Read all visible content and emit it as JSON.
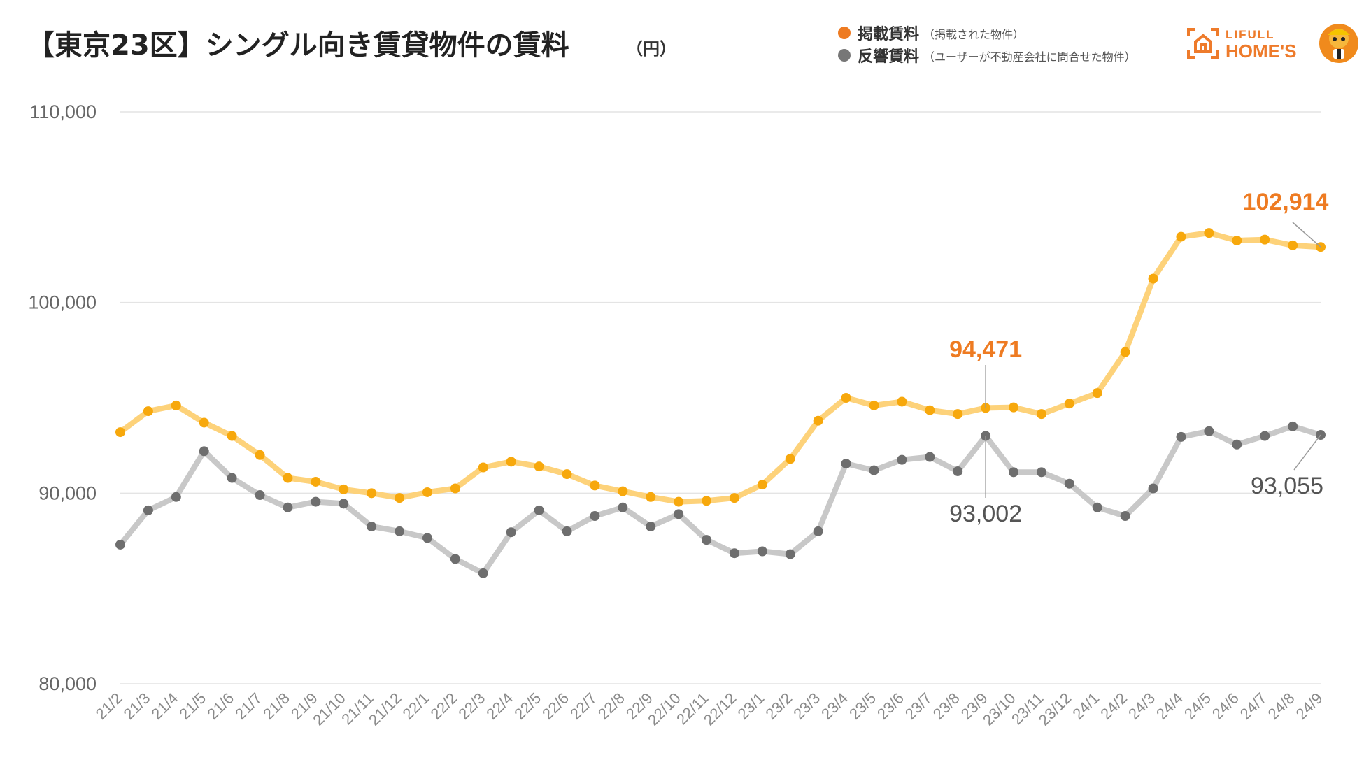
{
  "title": "【東京23区】シングル向き賃貸物件の賃料",
  "unit": "（円）",
  "legend": [
    {
      "label": "掲載賃料",
      "note": "（掲載された物件）",
      "color": "#ee7b22"
    },
    {
      "label": "反響賃料",
      "note": "（ユーザーが不動産会社に問合せた物件）",
      "color": "#777777"
    }
  ],
  "logo": {
    "line1": "LIFULL",
    "line2": "HOME'S",
    "color": "#ee7b2b"
  },
  "chart_data": {
    "type": "line",
    "ylim": [
      80000,
      110000
    ],
    "yticks": [
      "80,000",
      "90,000",
      "100,000",
      "110,000"
    ],
    "grid": true,
    "legend_position": "top-right",
    "categories": [
      "21/2",
      "21/3",
      "21/4",
      "21/5",
      "21/6",
      "21/7",
      "21/8",
      "21/9",
      "21/10",
      "21/11",
      "21/12",
      "22/1",
      "22/2",
      "22/3",
      "22/4",
      "22/5",
      "22/6",
      "22/7",
      "22/8",
      "22/9",
      "22/10",
      "22/11",
      "22/12",
      "23/1",
      "23/2",
      "23/3",
      "23/4",
      "23/5",
      "23/6",
      "23/7",
      "23/8",
      "23/9",
      "23/10",
      "23/11",
      "23/12",
      "24/1",
      "24/2",
      "24/3",
      "24/4",
      "24/5",
      "24/6",
      "24/7",
      "24/8",
      "24/9"
    ],
    "series": [
      {
        "name": "掲載賃料",
        "line_color": "#fdd27a",
        "point_color": "#f7a80c",
        "values": [
          93200,
          94300,
          94600,
          93700,
          93000,
          92000,
          90800,
          90600,
          90200,
          90000,
          89750,
          90050,
          90250,
          91350,
          91650,
          91400,
          91000,
          90400,
          90100,
          89800,
          89550,
          89600,
          89750,
          90450,
          91800,
          93800,
          95000,
          94600,
          94800,
          94350,
          94150,
          94471,
          94500,
          94150,
          94700,
          95250,
          97400,
          101250,
          103450,
          103650,
          103250,
          103300,
          103000,
          102914
        ]
      },
      {
        "name": "反響賃料",
        "line_color": "#c8c8c8",
        "point_color": "#6e6e6e",
        "values": [
          87300,
          89100,
          89800,
          92200,
          90800,
          89900,
          89250,
          89550,
          89450,
          88250,
          88000,
          87650,
          86550,
          85800,
          87950,
          89100,
          88000,
          88800,
          89250,
          88250,
          88900,
          87550,
          86850,
          86950,
          86800,
          88000,
          91550,
          91200,
          91750,
          91900,
          91150,
          93002,
          91100,
          91100,
          90500,
          89250,
          88800,
          90250,
          92950,
          93250,
          92550,
          93000,
          93500,
          93055
        ]
      }
    ],
    "annotations": [
      {
        "series": 0,
        "index": 31,
        "label": "94,471",
        "color": "#ee7b22"
      },
      {
        "series": 1,
        "index": 31,
        "label": "93,002",
        "color": "#555555"
      },
      {
        "series": 0,
        "index": 43,
        "label": "102,914",
        "color": "#ee7b22"
      },
      {
        "series": 1,
        "index": 43,
        "label": "93,055",
        "color": "#555555"
      }
    ]
  }
}
